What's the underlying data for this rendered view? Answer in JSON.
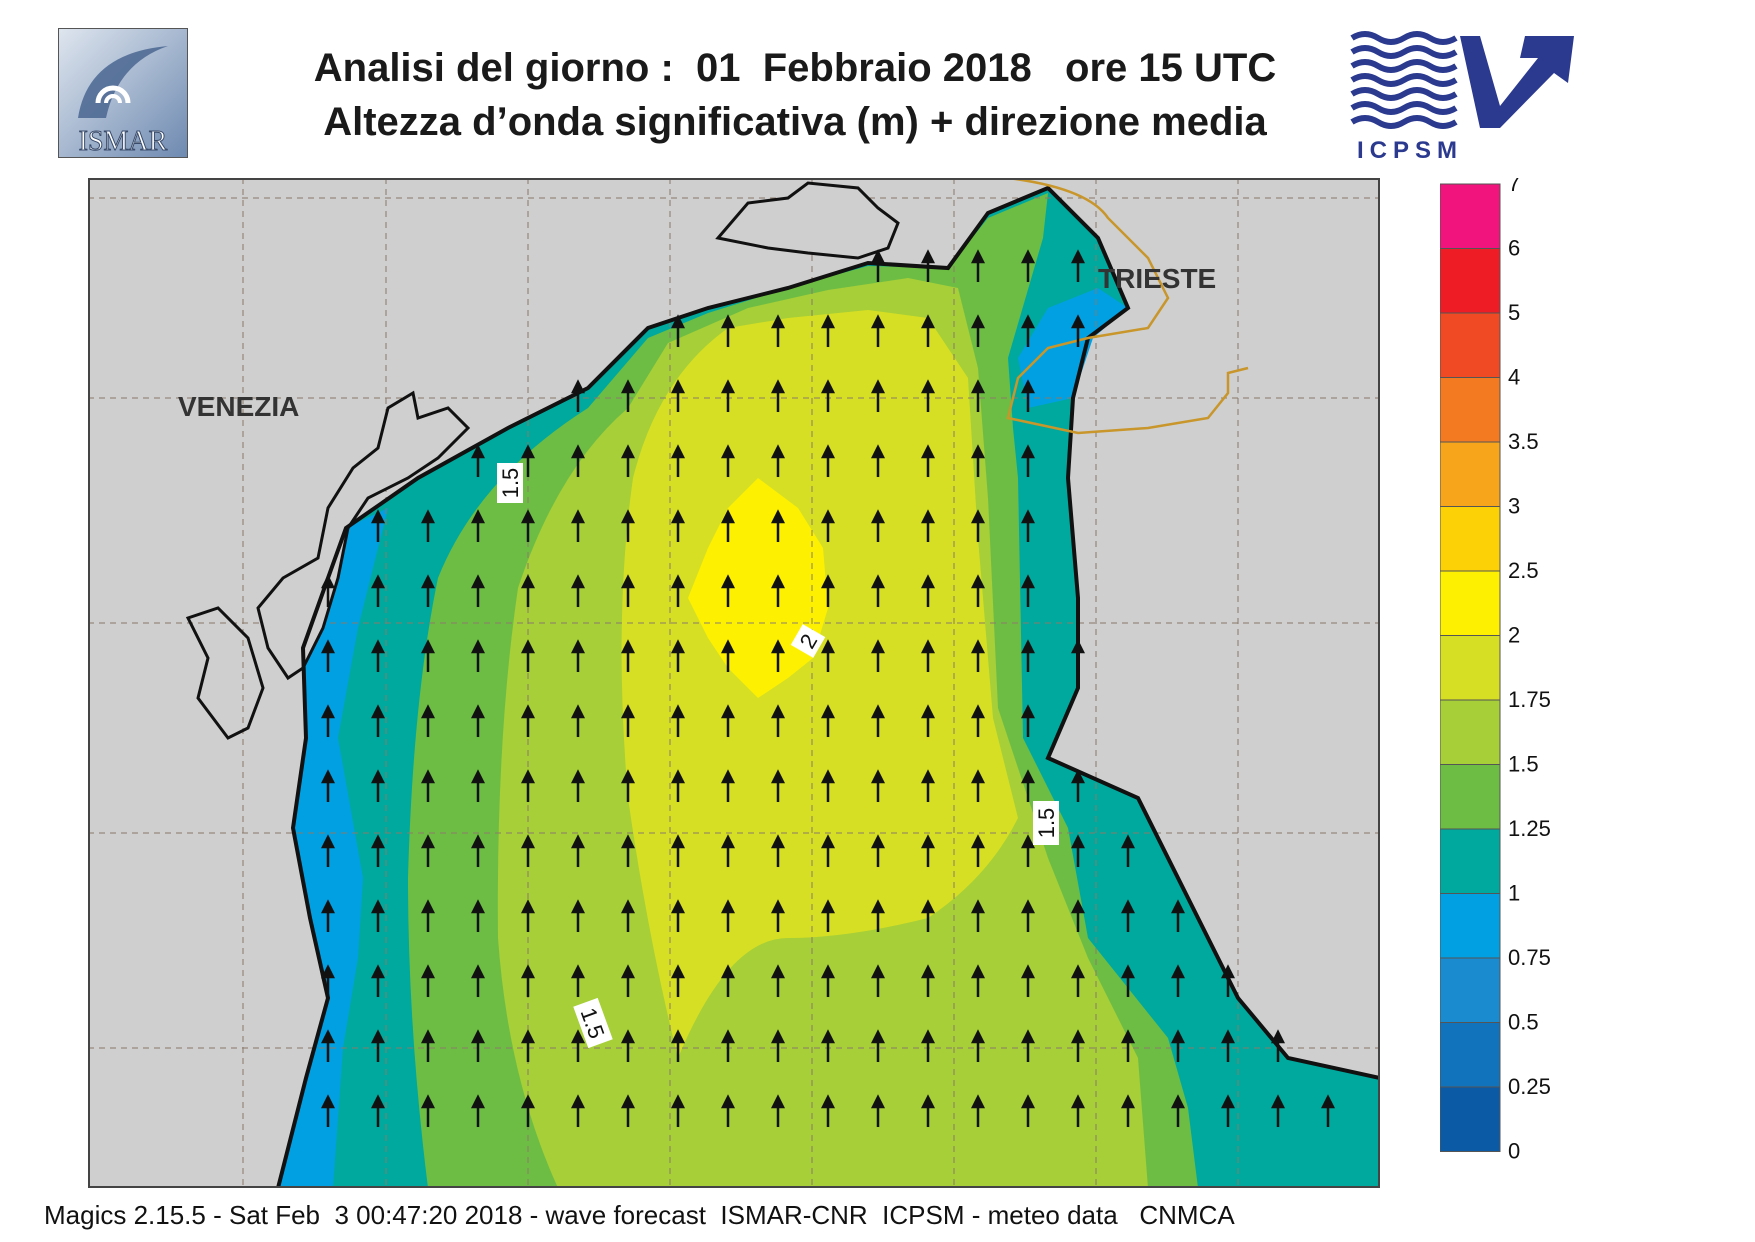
{
  "header": {
    "line1": "Analisi del giorno :  01  Febbraio 2018   ore 15 UTC",
    "line2": "Altezza d’onda significativa (m) + direzione media"
  },
  "logos": {
    "ismar": "ISMAR",
    "icpsm": "ICPSM"
  },
  "map": {
    "cities": [
      "VENEZIA",
      "TRIESTE"
    ],
    "contour_labels": [
      "1.5",
      "2",
      "1.5",
      "1.5"
    ],
    "wave_direction": "north",
    "colors": {
      "land": "#cfcfcf",
      "frame": "#444444",
      "coast": "#111111",
      "border": "#c8962a",
      "arrow": "#111111"
    }
  },
  "colorbar": {
    "labels": [
      "7",
      "6",
      "5",
      "4",
      "3.5",
      "3",
      "2.5",
      "2",
      "1.75",
      "1.5",
      "1.25",
      "1",
      "0.75",
      "0.5",
      "0.25",
      "0"
    ],
    "colors": [
      "#f0147c",
      "#ee1c25",
      "#f04a24",
      "#f37a21",
      "#f7a51b",
      "#fcd206",
      "#fdf101",
      "#d6df23",
      "#a6cf38",
      "#6dbd45",
      "#00a99d",
      "#00a0e3",
      "#1b8bd0",
      "#1173bc",
      "#0b5aa6"
    ]
  },
  "footer": "Magics 2.15.5 - Sat Feb  3 00:47:20 2018 - wave forecast  ISMAR-CNR  ICPSM - meteo data   CNMCA"
}
